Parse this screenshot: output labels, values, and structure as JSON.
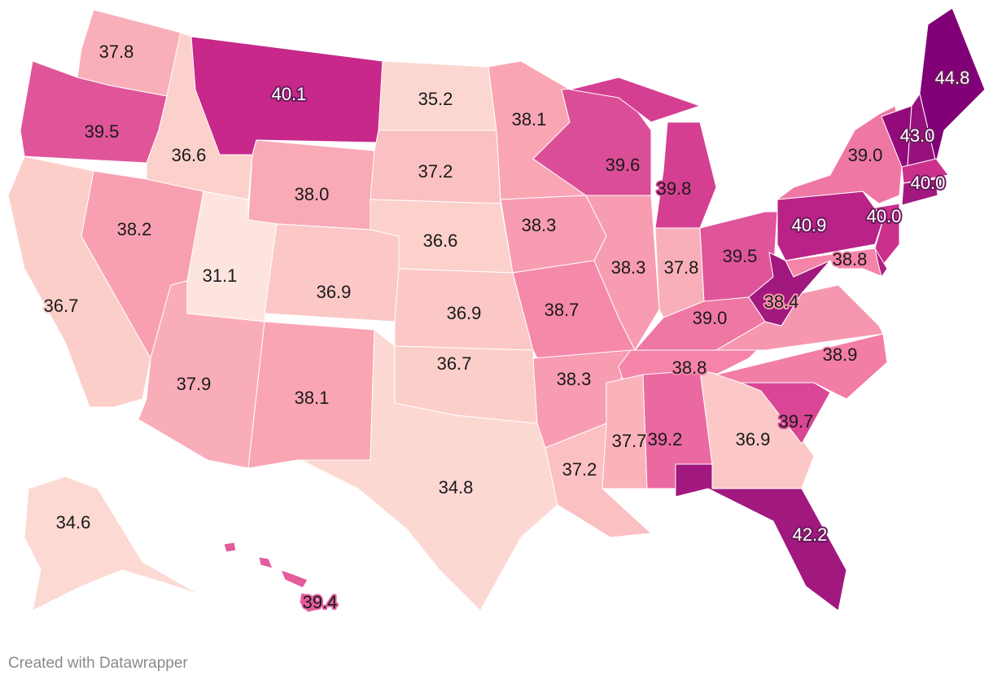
{
  "credit": "Created with Datawrapper",
  "color_scale": {
    "stops": [
      [
        31.1,
        "#fde4df"
      ],
      [
        36.5,
        "#fcd3cd"
      ],
      [
        38.0,
        "#f9aab6"
      ],
      [
        38.8,
        "#f584a8"
      ],
      [
        39.5,
        "#e0559a"
      ],
      [
        40.1,
        "#c7288a"
      ],
      [
        42.2,
        "#a1187f"
      ],
      [
        44.8,
        "#820077"
      ]
    ]
  },
  "regions": [
    {
      "state": "WA",
      "value": "37.8"
    },
    {
      "state": "OR",
      "value": "39.5"
    },
    {
      "state": "CA",
      "value": "36.7"
    },
    {
      "state": "ID",
      "value": "36.6"
    },
    {
      "state": "NV",
      "value": "38.2"
    },
    {
      "state": "MT",
      "value": "40.1"
    },
    {
      "state": "WY",
      "value": "38.0"
    },
    {
      "state": "UT",
      "value": "31.1"
    },
    {
      "state": "CO",
      "value": "36.9"
    },
    {
      "state": "AZ",
      "value": "37.9"
    },
    {
      "state": "NM",
      "value": "38.1"
    },
    {
      "state": "ND",
      "value": "35.2"
    },
    {
      "state": "SD",
      "value": "37.2"
    },
    {
      "state": "NE",
      "value": "36.6"
    },
    {
      "state": "KS",
      "value": "36.9"
    },
    {
      "state": "OK",
      "value": "36.7"
    },
    {
      "state": "TX",
      "value": "34.8"
    },
    {
      "state": "MN",
      "value": "38.1"
    },
    {
      "state": "IA",
      "value": "38.3"
    },
    {
      "state": "MO",
      "value": "38.7"
    },
    {
      "state": "AR",
      "value": "38.3"
    },
    {
      "state": "LA",
      "value": "37.2"
    },
    {
      "state": "WI",
      "value": "39.6"
    },
    {
      "state": "IL",
      "value": "38.3"
    },
    {
      "state": "MI",
      "value": "39.8"
    },
    {
      "state": "IN",
      "value": "37.8"
    },
    {
      "state": "OH",
      "value": "39.5"
    },
    {
      "state": "KY",
      "value": "39.0"
    },
    {
      "state": "TN",
      "value": "38.8"
    },
    {
      "state": "MS",
      "value": "37.7"
    },
    {
      "state": "AL",
      "value": "39.2"
    },
    {
      "state": "GA",
      "value": "36.9"
    },
    {
      "state": "FL",
      "value": "42.2"
    },
    {
      "state": "SC",
      "value": "39.7"
    },
    {
      "state": "NC",
      "value": "38.9"
    },
    {
      "state": "VA",
      "value": "38.4"
    },
    {
      "state": "WV",
      "color": "#a1187f"
    },
    {
      "state": "PA",
      "value": "40.9"
    },
    {
      "state": "NY",
      "value": "39.0"
    },
    {
      "state": "NJ",
      "value": "40.0"
    },
    {
      "state": "MD",
      "value": "38.8"
    },
    {
      "state": "DE",
      "color": "#b01f85"
    },
    {
      "state": "VT",
      "color": "#930a7b"
    },
    {
      "state": "NH",
      "value": "43.0"
    },
    {
      "state": "ME",
      "value": "44.8"
    },
    {
      "state": "MA",
      "value": "40.0"
    },
    {
      "state": "CT",
      "color": "#a1187f"
    },
    {
      "state": "AK",
      "value": "34.6"
    },
    {
      "state": "HI",
      "value": "39.4"
    }
  ]
}
